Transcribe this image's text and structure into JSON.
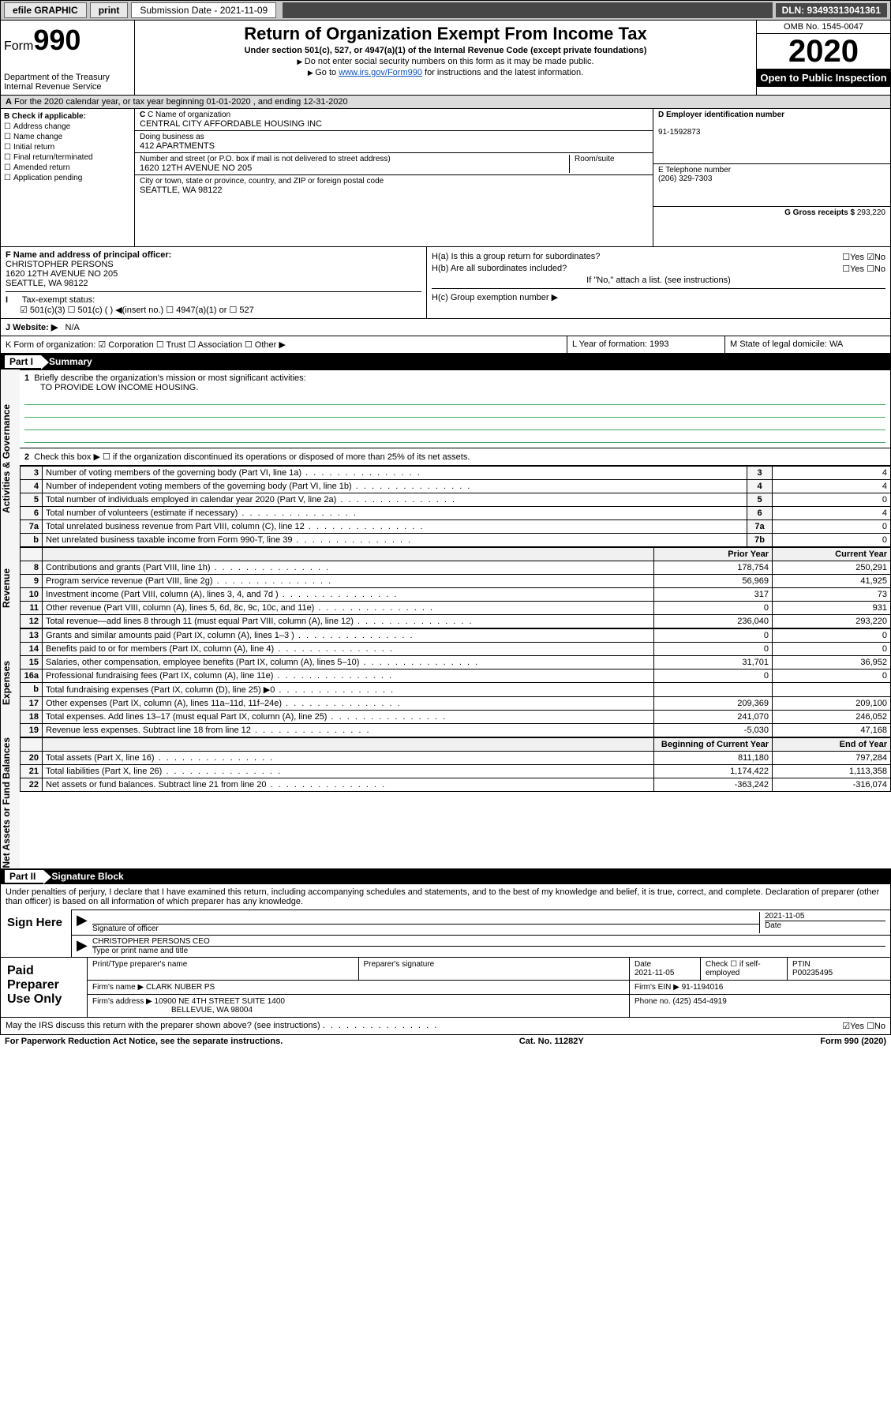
{
  "topbar": {
    "efile": "efile GRAPHIC",
    "print": "print",
    "submission": "Submission Date - 2021-11-09",
    "dln": "DLN: 93493313041361"
  },
  "header": {
    "form": "Form",
    "num": "990",
    "dept": "Department of the Treasury",
    "irs": "Internal Revenue Service",
    "title": "Return of Organization Exempt From Income Tax",
    "sub": "Under section 501(c), 527, or 4947(a)(1) of the Internal Revenue Code (except private foundations)",
    "note1": "Do not enter social security numbers on this form as it may be made public.",
    "note2_a": "Go to ",
    "note2_link": "www.irs.gov/Form990",
    "note2_b": " for instructions and the latest information.",
    "omb": "OMB No. 1545-0047",
    "year": "2020",
    "open": "Open to Public Inspection"
  },
  "row_a": "For the 2020 calendar year, or tax year beginning 01-01-2020    , and ending 12-31-2020",
  "box_b": {
    "label": "B Check if applicable:",
    "items": [
      "Address change",
      "Name change",
      "Initial return",
      "Final return/terminated",
      "Amended return",
      "Application pending"
    ]
  },
  "box_c": {
    "name_lbl": "C Name of organization",
    "name": "CENTRAL CITY AFFORDABLE HOUSING INC",
    "dba_lbl": "Doing business as",
    "dba": "412 APARTMENTS",
    "addr_lbl": "Number and street (or P.O. box if mail is not delivered to street address)",
    "room_lbl": "Room/suite",
    "addr": "1620 12TH AVENUE NO 205",
    "city_lbl": "City or town, state or province, country, and ZIP or foreign postal code",
    "city": "SEATTLE, WA  98122"
  },
  "box_d": {
    "lbl": "D Employer identification number",
    "val": "91-1592873"
  },
  "box_e": {
    "lbl": "E Telephone number",
    "val": "(206) 329-7303"
  },
  "box_g": {
    "lbl": "G Gross receipts $",
    "val": "293,220"
  },
  "box_f": {
    "lbl": "F  Name and address of principal officer:",
    "name": "CHRISTOPHER PERSONS",
    "addr": "1620 12TH AVENUE NO 205",
    "city": "SEATTLE, WA  98122"
  },
  "box_h": {
    "ha": "H(a)  Is this a group return for subordinates?",
    "ha_ans": "☐Yes  ☑No",
    "hb": "H(b)  Are all subordinates included?",
    "hb_ans": "☐Yes  ☐No",
    "hb_note": "If \"No,\" attach a list. (see instructions)",
    "hc": "H(c)  Group exemption number ▶"
  },
  "box_i": {
    "lbl": "Tax-exempt status:",
    "opts": "☑ 501(c)(3)   ☐ 501(c) (  ) ◀(insert no.)    ☐ 4947(a)(1) or   ☐ 527"
  },
  "box_j": {
    "lbl": "J   Website: ▶",
    "val": "N/A"
  },
  "box_k": "K Form of organization:  ☑ Corporation  ☐ Trust  ☐ Association  ☐ Other ▶",
  "box_l": "L Year of formation: 1993",
  "box_m": "M State of legal domicile: WA",
  "part1_title": "Summary",
  "summary": {
    "q1_lbl": "Briefly describe the organization's mission or most significant activities:",
    "q1_val": "TO PROVIDE LOW INCOME HOUSING.",
    "q2": "Check this box ▶ ☐  if the organization discontinued its operations or disposed of more than 25% of its net assets.",
    "sections": {
      "gov": "Activities & Governance",
      "rev": "Revenue",
      "exp": "Expenses",
      "net": "Net Assets or Fund Balances"
    },
    "rows_single": [
      {
        "n": "3",
        "t": "Number of voting members of the governing body (Part VI, line 1a)",
        "r": "3",
        "v": "4"
      },
      {
        "n": "4",
        "t": "Number of independent voting members of the governing body (Part VI, line 1b)",
        "r": "4",
        "v": "4"
      },
      {
        "n": "5",
        "t": "Total number of individuals employed in calendar year 2020 (Part V, line 2a)",
        "r": "5",
        "v": "0"
      },
      {
        "n": "6",
        "t": "Total number of volunteers (estimate if necessary)",
        "r": "6",
        "v": "4"
      },
      {
        "n": "7a",
        "t": "Total unrelated business revenue from Part VIII, column (C), line 12",
        "r": "7a",
        "v": "0"
      },
      {
        "n": " b",
        "t": "Net unrelated business taxable income from Form 990-T, line 39",
        "r": "7b",
        "v": "0"
      }
    ],
    "col_hdrs": {
      "prior": "Prior Year",
      "current": "Current Year"
    },
    "rows_rev": [
      {
        "n": "8",
        "t": "Contributions and grants (Part VIII, line 1h)",
        "p": "178,754",
        "c": "250,291"
      },
      {
        "n": "9",
        "t": "Program service revenue (Part VIII, line 2g)",
        "p": "56,969",
        "c": "41,925"
      },
      {
        "n": "10",
        "t": "Investment income (Part VIII, column (A), lines 3, 4, and 7d )",
        "p": "317",
        "c": "73"
      },
      {
        "n": "11",
        "t": "Other revenue (Part VIII, column (A), lines 5, 6d, 8c, 9c, 10c, and 11e)",
        "p": "0",
        "c": "931"
      },
      {
        "n": "12",
        "t": "Total revenue—add lines 8 through 11 (must equal Part VIII, column (A), line 12)",
        "p": "236,040",
        "c": "293,220"
      }
    ],
    "rows_exp": [
      {
        "n": "13",
        "t": "Grants and similar amounts paid (Part IX, column (A), lines 1–3 )",
        "p": "0",
        "c": "0"
      },
      {
        "n": "14",
        "t": "Benefits paid to or for members (Part IX, column (A), line 4)",
        "p": "0",
        "c": "0"
      },
      {
        "n": "15",
        "t": "Salaries, other compensation, employee benefits (Part IX, column (A), lines 5–10)",
        "p": "31,701",
        "c": "36,952"
      },
      {
        "n": "16a",
        "t": "Professional fundraising fees (Part IX, column (A), line 11e)",
        "p": "0",
        "c": "0"
      },
      {
        "n": " b",
        "t": "Total fundraising expenses (Part IX, column (D), line 25) ▶0",
        "p": "",
        "c": "",
        "shade": true
      },
      {
        "n": "17",
        "t": "Other expenses (Part IX, column (A), lines 11a–11d, 11f–24e)",
        "p": "209,369",
        "c": "209,100"
      },
      {
        "n": "18",
        "t": "Total expenses. Add lines 13–17 (must equal Part IX, column (A), line 25)",
        "p": "241,070",
        "c": "246,052"
      },
      {
        "n": "19",
        "t": "Revenue less expenses. Subtract line 18 from line 12",
        "p": "-5,030",
        "c": "47,168"
      }
    ],
    "col_hdrs2": {
      "begin": "Beginning of Current Year",
      "end": "End of Year"
    },
    "rows_net": [
      {
        "n": "20",
        "t": "Total assets (Part X, line 16)",
        "p": "811,180",
        "c": "797,284"
      },
      {
        "n": "21",
        "t": "Total liabilities (Part X, line 26)",
        "p": "1,174,422",
        "c": "1,113,358"
      },
      {
        "n": "22",
        "t": "Net assets or fund balances. Subtract line 21 from line 20",
        "p": "-363,242",
        "c": "-316,074"
      }
    ]
  },
  "part2_title": "Signature Block",
  "sig": {
    "decl": "Under penalties of perjury, I declare that I have examined this return, including accompanying schedules and statements, and to the best of my knowledge and belief, it is true, correct, and complete. Declaration of preparer (other than officer) is based on all information of which preparer has any knowledge.",
    "sign_here": "Sign Here",
    "sig_officer": "Signature of officer",
    "date": "2021-11-05",
    "date_lbl": "Date",
    "name": "CHRISTOPHER PERSONS CEO",
    "name_lbl": "Type or print name and title"
  },
  "paid": {
    "title": "Paid Preparer Use Only",
    "h1": "Print/Type preparer's name",
    "h2": "Preparer's signature",
    "h3": "Date",
    "h3v": "2021-11-05",
    "h4": "Check ☐ if self-employed",
    "h5": "PTIN",
    "h5v": "P00235495",
    "firm_lbl": "Firm's name      ▶",
    "firm": "CLARK NUBER PS",
    "ein_lbl": "Firm's EIN ▶",
    "ein": "91-1194016",
    "addr_lbl": "Firm's address ▶",
    "addr": "10900 NE 4TH STREET SUITE 1400",
    "city": "BELLEVUE, WA  98004",
    "phone_lbl": "Phone no.",
    "phone": "(425) 454-4919"
  },
  "footer": {
    "discuss": "May the IRS discuss this return with the preparer shown above? (see instructions)",
    "discuss_ans": "☑Yes  ☐No",
    "paperwork": "For Paperwork Reduction Act Notice, see the separate instructions.",
    "cat": "Cat. No. 11282Y",
    "form": "Form 990 (2020)"
  }
}
